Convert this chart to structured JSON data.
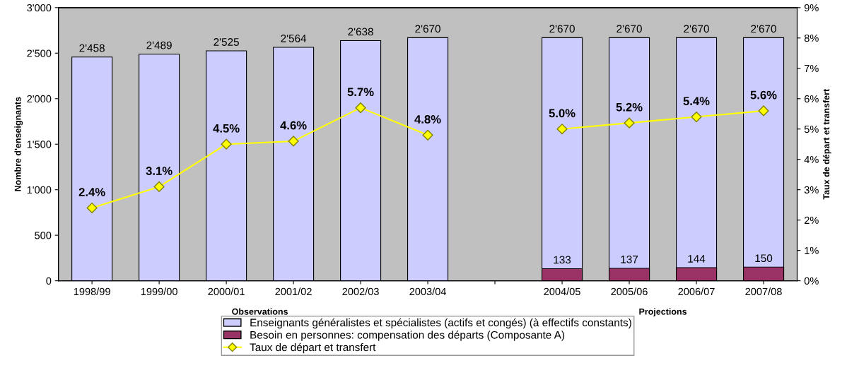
{
  "chart_data": {
    "type": "bar",
    "ylabel": "Nombre d'enseignants",
    "y2label": "Taux de départ et transfert",
    "categories": [
      "1998/99",
      "1999/00",
      "2000/01",
      "2001/02",
      "2002/03",
      "2003/04",
      null,
      "2004/05",
      "2005/06",
      "2006/07",
      "2007/08"
    ],
    "series": [
      {
        "name": "Enseignants généralistes et spécialistes (actifs et congés) (à effectifs constants)",
        "color": "#ccccff",
        "values": [
          2458,
          2489,
          2525,
          2564,
          2638,
          2670,
          null,
          2670,
          2670,
          2670,
          2670
        ],
        "value_labels": [
          "2'458",
          "2'489",
          "2'525",
          "2'564",
          "2'638",
          "2'670",
          null,
          "2'670",
          "2'670",
          "2'670",
          "2'670"
        ]
      },
      {
        "name": "Besoin en personnes: compensation des départs (Composante A)",
        "color": "#993366",
        "values": [
          null,
          null,
          null,
          null,
          null,
          null,
          null,
          133,
          137,
          144,
          150
        ],
        "value_labels": [
          null,
          null,
          null,
          null,
          null,
          null,
          null,
          "133",
          "137",
          "144",
          "150"
        ]
      },
      {
        "name": "Taux de départ et transfert",
        "type": "line",
        "axis": "y2",
        "color": "#ffff00",
        "marker": "diamond",
        "values": [
          2.4,
          3.1,
          4.5,
          4.6,
          5.7,
          4.8,
          null,
          5.0,
          5.2,
          5.4,
          5.6
        ],
        "value_labels": [
          "2.4%",
          "3.1%",
          "4.5%",
          "4.6%",
          "5.7%",
          "4.8%",
          null,
          "5.0%",
          "5.2%",
          "5.4%",
          "5.6%"
        ]
      }
    ],
    "ylim": [
      0,
      3000
    ],
    "yticks": [
      0,
      500,
      {
        "value": 1000,
        "label": "1'000"
      },
      {
        "value": 1500,
        "label": "1'500"
      },
      {
        "value": 2000,
        "label": "2'000"
      },
      {
        "value": 2500,
        "label": "2'500"
      },
      {
        "value": 3000,
        "label": "3'000"
      }
    ],
    "y2lim": [
      0,
      9
    ],
    "y2ticks": [
      {
        "value": 0,
        "label": "0%"
      },
      {
        "value": 1,
        "label": "1%"
      },
      {
        "value": 2,
        "label": "2%"
      },
      {
        "value": 3,
        "label": "3%"
      },
      {
        "value": 4,
        "label": "4%"
      },
      {
        "value": 5,
        "label": "5%"
      },
      {
        "value": 6,
        "label": "6%"
      },
      {
        "value": 7,
        "label": "7%"
      },
      {
        "value": 8,
        "label": "8%"
      },
      {
        "value": 9,
        "label": "9%"
      }
    ],
    "annotations": [
      "Observations",
      "Projections"
    ],
    "grid": false,
    "legend": "bottom"
  }
}
